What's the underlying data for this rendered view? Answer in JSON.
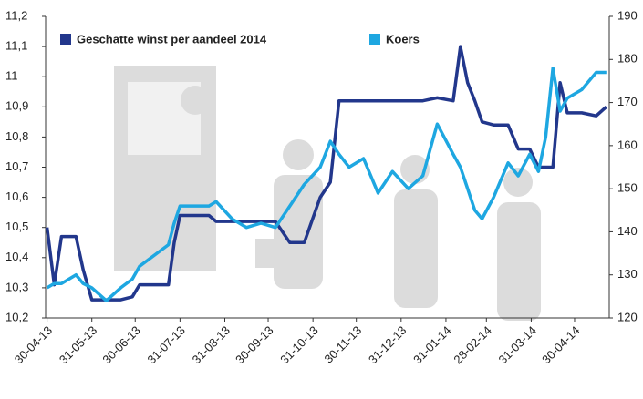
{
  "chart_data": {
    "type": "line",
    "x": [
      "2013-04-30",
      "2013-05-05",
      "2013-05-10",
      "2013-05-20",
      "2013-05-25",
      "2013-05-31",
      "2013-06-10",
      "2013-06-20",
      "2013-06-28",
      "2013-07-03",
      "2013-07-15",
      "2013-07-23",
      "2013-07-27",
      "2013-07-31",
      "2013-08-10",
      "2013-08-20",
      "2013-08-25",
      "2013-09-05",
      "2013-09-15",
      "2013-09-25",
      "2013-10-05",
      "2013-10-15",
      "2013-10-25",
      "2013-11-05",
      "2013-11-12",
      "2013-11-18",
      "2013-11-25",
      "2013-12-05",
      "2013-12-15",
      "2013-12-25",
      "2014-01-05",
      "2014-01-15",
      "2014-01-25",
      "2014-02-05",
      "2014-02-10",
      "2014-02-15",
      "2014-02-20",
      "2014-02-25",
      "2014-03-05",
      "2014-03-15",
      "2014-03-22",
      "2014-03-30",
      "2014-04-05",
      "2014-04-10",
      "2014-04-15",
      "2014-04-20",
      "2014-04-25",
      "2014-05-05",
      "2014-05-15",
      "2014-05-22"
    ],
    "series": [
      {
        "name": "Geschatte winst per aandeel 2014",
        "color": "#22378c",
        "axis": "y",
        "values": [
          10.5,
          10.31,
          10.47,
          10.47,
          10.36,
          10.26,
          10.26,
          10.26,
          10.27,
          10.31,
          10.31,
          10.31,
          10.45,
          10.54,
          10.54,
          10.54,
          10.52,
          10.52,
          10.52,
          10.52,
          10.52,
          10.45,
          10.45,
          10.6,
          10.65,
          10.92,
          10.92,
          10.92,
          10.92,
          10.92,
          10.92,
          10.92,
          10.93,
          10.92,
          11.1,
          10.98,
          10.92,
          10.85,
          10.84,
          10.84,
          10.76,
          10.76,
          10.7,
          10.7,
          10.7,
          10.98,
          10.88,
          10.88,
          10.87,
          10.9
        ]
      },
      {
        "name": "Koers",
        "color": "#1ea7e1",
        "axis": "y2",
        "values": [
          127,
          128,
          128,
          130,
          128,
          127,
          124,
          127,
          129,
          132,
          135,
          137,
          142,
          146,
          146,
          146,
          147,
          143,
          141,
          142,
          141,
          146,
          151,
          155,
          161,
          158,
          155,
          157,
          149,
          154,
          150,
          153,
          165,
          158,
          155,
          150,
          145,
          143,
          148,
          156,
          153,
          158,
          154,
          162,
          178,
          168,
          171,
          173,
          177,
          177
        ]
      }
    ],
    "xlim": [
      "2013-04-29",
      "2014-05-24"
    ],
    "xticks": [
      {
        "value": "2013-04-30",
        "label": "30-04-13"
      },
      {
        "value": "2013-05-31",
        "label": "31-05-13"
      },
      {
        "value": "2013-06-30",
        "label": "30-06-13"
      },
      {
        "value": "2013-07-31",
        "label": "31-07-13"
      },
      {
        "value": "2013-08-31",
        "label": "31-08-13"
      },
      {
        "value": "2013-09-30",
        "label": "30-09-13"
      },
      {
        "value": "2013-10-31",
        "label": "31-10-13"
      },
      {
        "value": "2013-11-30",
        "label": "30-11-13"
      },
      {
        "value": "2013-12-31",
        "label": "31-12-13"
      },
      {
        "value": "2014-01-31",
        "label": "31-01-14"
      },
      {
        "value": "2014-02-28",
        "label": "28-02-14"
      },
      {
        "value": "2014-03-31",
        "label": "31-03-14"
      },
      {
        "value": "2014-04-30",
        "label": "30-04-14"
      }
    ],
    "ylim": [
      10.2,
      11.2
    ],
    "yticks": [
      {
        "value": 10.2,
        "label": "10,2"
      },
      {
        "value": 10.3,
        "label": "10,3"
      },
      {
        "value": 10.4,
        "label": "10,4"
      },
      {
        "value": 10.5,
        "label": "10,5"
      },
      {
        "value": 10.6,
        "label": "10,6"
      },
      {
        "value": 10.7,
        "label": "10,7"
      },
      {
        "value": 10.8,
        "label": "10,8"
      },
      {
        "value": 10.9,
        "label": "10,9"
      },
      11,
      {
        "value": 11.1,
        "label": "11,1"
      },
      {
        "value": 11.2,
        "label": "11,2"
      }
    ],
    "y2lim": [
      120,
      190
    ],
    "y2ticks": [
      120,
      130,
      140,
      150,
      160,
      170,
      180,
      190
    ],
    "legend": "top-left"
  }
}
